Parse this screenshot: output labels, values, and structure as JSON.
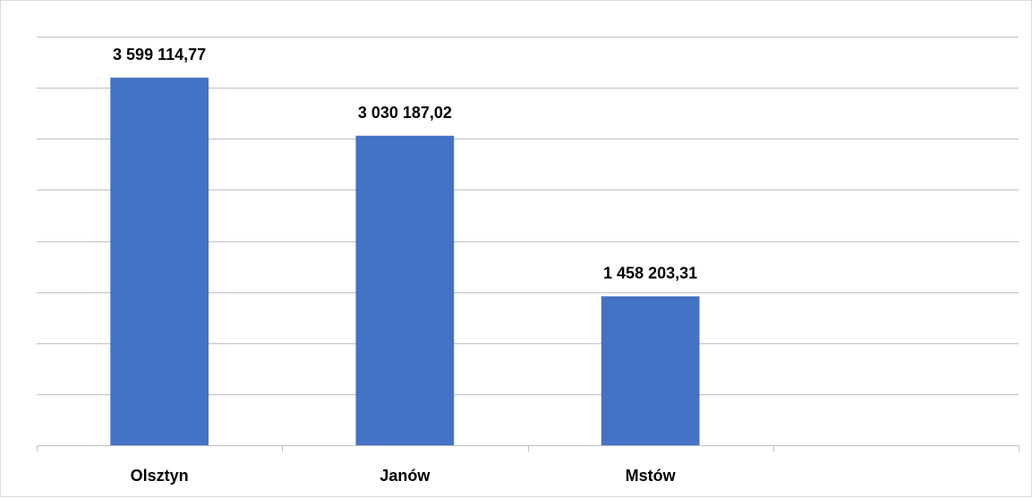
{
  "chart_data": {
    "type": "bar",
    "categories": [
      "Olsztyn",
      "Janów",
      "Mstów",
      ""
    ],
    "values": [
      3599114.77,
      3030187.02,
      1458203.31,
      null
    ],
    "data_labels": [
      "3 599 114,77",
      "3 030 187,02",
      "1 458 203,31",
      ""
    ],
    "ylim": [
      0,
      4000000
    ],
    "y_gridline_step": 500000,
    "grid": true,
    "legend": "none",
    "colors": {
      "bar": "#4472C4",
      "gridline": "#BFBFBF",
      "text": "#000000"
    }
  }
}
